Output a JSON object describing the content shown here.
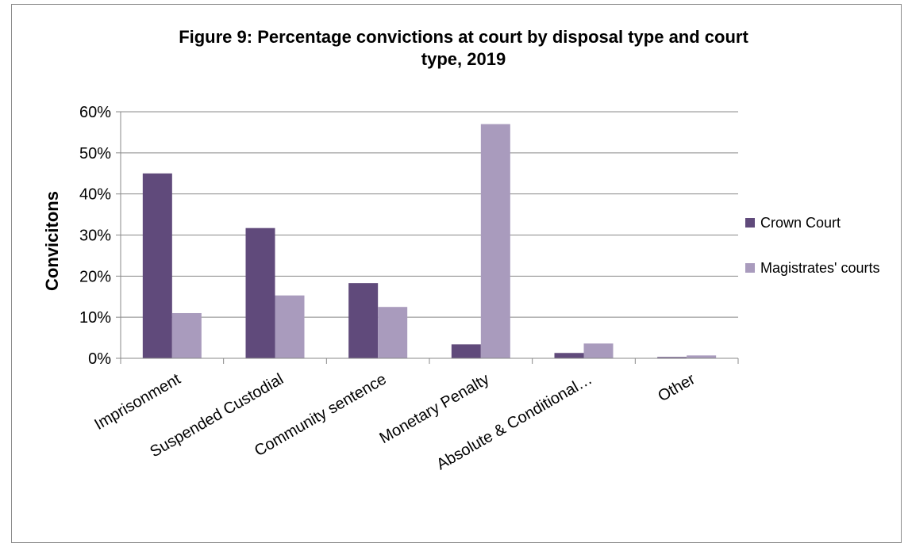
{
  "chart_data": {
    "type": "bar",
    "title_line1": "Figure 9: Percentage convictions at court by disposal type and court",
    "title_line2": "type, 2019",
    "ylabel": "Convicitons",
    "xlabel": "",
    "categories": [
      "Imprisonment",
      "Suspended Custodial",
      "Community sentence",
      "Monetary Penalty",
      "Absolute & Conditional…",
      "Other"
    ],
    "yticks": [
      "0%",
      "10%",
      "20%",
      "30%",
      "40%",
      "50%",
      "60%"
    ],
    "ylim": [
      0,
      60
    ],
    "grid": true,
    "legend_position": "right",
    "series": [
      {
        "name": "Crown Court",
        "color": "#604a7b",
        "values": [
          45.0,
          31.7,
          18.3,
          3.4,
          1.3,
          0.3
        ]
      },
      {
        "name": "Magistrates' courts",
        "color": "#a99bbd",
        "values": [
          11.0,
          15.3,
          12.5,
          57.0,
          3.6,
          0.7
        ]
      }
    ]
  }
}
